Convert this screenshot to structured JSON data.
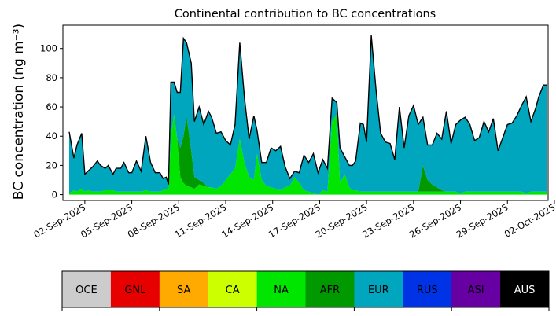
{
  "chart_data": {
    "type": "area",
    "title": "Continental contribution to BC concentrations",
    "ylabel": "BC concentration (ng m⁻³)",
    "xlabel": "",
    "ylim": [
      -4,
      116
    ],
    "xlim": [
      0.6,
      31.6
    ],
    "yticks": [
      0,
      20,
      40,
      60,
      80,
      100
    ],
    "xtick_positions": [
      2,
      5,
      8,
      11,
      14,
      17,
      20,
      23,
      26,
      29,
      32
    ],
    "xtick_labels": [
      "02-Sep-2025",
      "05-Sep-2025",
      "08-Sep-2025",
      "11-Sep-2025",
      "14-Sep-2025",
      "17-Sep-2025",
      "20-Sep-2025",
      "23-Sep-2025",
      "26-Sep-2025",
      "29-Sep-2025",
      "02-Oct-2025"
    ],
    "legend": [
      {
        "label": "OCE",
        "color": "#cccccc",
        "text_color": "#000000"
      },
      {
        "label": "GNL",
        "color": "#e60000",
        "text_color": "#000000"
      },
      {
        "label": "SA",
        "color": "#ffaa00",
        "text_color": "#000000"
      },
      {
        "label": "CA",
        "color": "#ccff00",
        "text_color": "#000000"
      },
      {
        "label": "NA",
        "color": "#00e600",
        "text_color": "#000000"
      },
      {
        "label": "AFR",
        "color": "#009900",
        "text_color": "#000000"
      },
      {
        "label": "EUR",
        "color": "#00a6bd",
        "text_color": "#000000"
      },
      {
        "label": "RUS",
        "color": "#0033e6",
        "text_color": "#000000"
      },
      {
        "label": "ASI",
        "color": "#6600a3",
        "text_color": "#000000"
      },
      {
        "label": "AUS",
        "color": "#000000",
        "text_color": "#ffffff"
      }
    ],
    "x": [
      1.0,
      1.3,
      1.5,
      1.8,
      2.0,
      2.2,
      2.5,
      2.8,
      3.0,
      3.3,
      3.5,
      3.8,
      4.0,
      4.3,
      4.5,
      4.8,
      5.0,
      5.3,
      5.6,
      5.9,
      6.2,
      6.5,
      6.8,
      7.0,
      7.2,
      7.35,
      7.5,
      7.7,
      7.9,
      8.1,
      8.3,
      8.5,
      8.8,
      9.0,
      9.3,
      9.6,
      9.9,
      10.1,
      10.4,
      10.7,
      11.0,
      11.3,
      11.6,
      11.9,
      12.2,
      12.5,
      12.8,
      13.0,
      13.3,
      13.6,
      13.9,
      14.2,
      14.5,
      14.8,
      15.1,
      15.4,
      15.7,
      16.0,
      16.3,
      16.6,
      16.9,
      17.2,
      17.5,
      17.8,
      18.1,
      18.3,
      18.6,
      18.9,
      19.1,
      19.3,
      19.6,
      19.8,
      20.0,
      20.3,
      20.6,
      20.9,
      21.2,
      21.5,
      21.8,
      22.1,
      22.4,
      22.7,
      23.0,
      23.3,
      23.6,
      23.9,
      24.2,
      24.5,
      24.8,
      25.1,
      25.4,
      25.7,
      26.0,
      26.3,
      26.6,
      26.9,
      27.2,
      27.5,
      27.8,
      28.1,
      28.4,
      28.7,
      29.0,
      29.3,
      29.6,
      29.9,
      30.2,
      30.5,
      30.8,
      31.0,
      31.3,
      31.5
    ],
    "series": [
      {
        "name": "NA",
        "values": [
          1,
          3,
          2,
          4,
          2,
          3,
          2,
          2,
          2,
          3,
          3,
          3,
          2,
          2,
          2,
          2,
          2,
          2,
          2,
          3,
          2,
          2,
          2,
          3,
          4,
          3,
          40,
          55,
          38,
          12,
          8,
          6,
          5,
          4,
          7,
          6,
          5,
          5,
          4,
          6,
          10,
          14,
          18,
          38,
          22,
          12,
          10,
          28,
          10,
          6,
          5,
          4,
          3,
          5,
          6,
          12,
          8,
          3,
          2,
          1,
          0,
          3,
          2,
          50,
          55,
          8,
          14,
          5,
          3,
          3,
          2,
          2,
          2,
          2,
          2,
          2,
          2,
          2,
          2,
          2,
          2,
          2,
          2,
          2,
          2,
          2,
          2,
          2,
          2,
          2,
          2,
          2,
          1,
          2,
          2,
          2,
          2,
          2,
          2,
          2,
          2,
          2,
          2,
          2,
          2,
          2,
          1,
          2,
          2,
          2,
          2,
          2
        ]
      },
      {
        "name": "AFR",
        "values": [
          0,
          0,
          0,
          0,
          0,
          0,
          0,
          0,
          0,
          0,
          0,
          0,
          0,
          0,
          0,
          0,
          0,
          0,
          0,
          0,
          0,
          0,
          0,
          0,
          0,
          0,
          0,
          0,
          0,
          20,
          32,
          48,
          25,
          8,
          3,
          2,
          0,
          0,
          0,
          0,
          0,
          0,
          0,
          0,
          0,
          0,
          0,
          0,
          0,
          0,
          0,
          0,
          0,
          0,
          0,
          0,
          0,
          0,
          0,
          0,
          0,
          0,
          0,
          0,
          0,
          0,
          0,
          0,
          0,
          0,
          0,
          0,
          0,
          0,
          0,
          0,
          0,
          0,
          0,
          0,
          0,
          0,
          0,
          0,
          18,
          8,
          5,
          3,
          1,
          0,
          0,
          0,
          0,
          0,
          0,
          0,
          0,
          0,
          0,
          0,
          0,
          0,
          0,
          0,
          0,
          0,
          0,
          0,
          0,
          0,
          0,
          0
        ]
      },
      {
        "name": "EUR",
        "values": [
          42,
          22,
          32,
          38,
          12,
          13,
          17,
          21,
          18,
          15,
          17,
          11,
          16,
          16,
          20,
          13,
          13,
          21,
          14,
          37,
          20,
          13,
          13,
          8,
          8,
          4,
          37,
          22,
          32,
          38,
          67,
          50,
          60,
          38,
          50,
          40,
          52,
          48,
          38,
          37,
          27,
          20,
          30,
          66,
          44,
          26,
          44,
          16,
          12,
          16,
          27,
          26,
          30,
          14,
          5,
          4,
          7,
          24,
          20,
          27,
          15,
          21,
          16,
          16,
          8,
          24,
          12,
          15,
          17,
          20,
          47,
          46,
          34,
          107,
          70,
          40,
          34,
          33,
          22,
          58,
          30,
          52,
          59,
          46,
          33,
          24,
          27,
          37,
          35,
          55,
          33,
          46,
          50,
          51,
          46,
          35,
          37,
          48,
          41,
          50,
          28,
          37,
          46,
          47,
          52,
          59,
          66,
          48,
          57,
          65,
          73,
          73
        ]
      }
    ]
  }
}
